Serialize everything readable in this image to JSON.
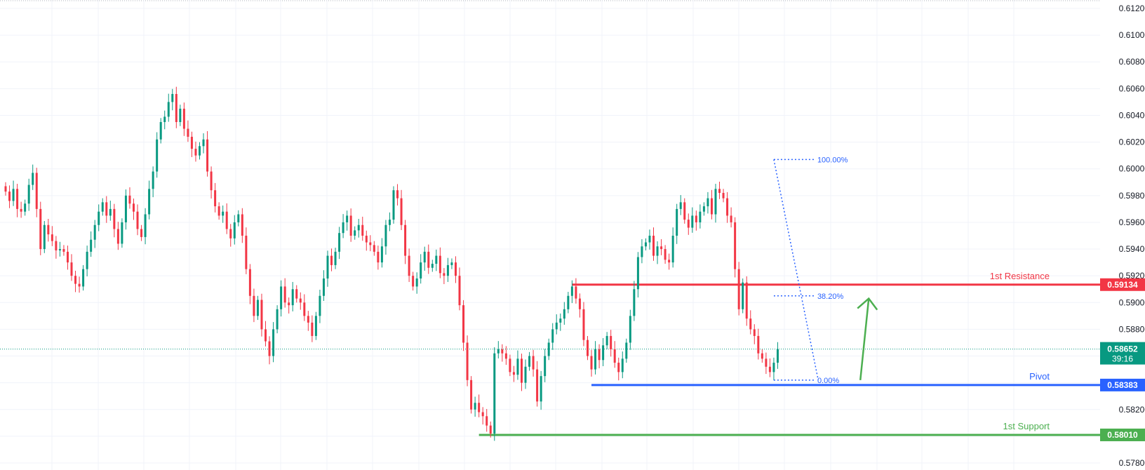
{
  "chart_data": {
    "type": "candlestick",
    "instrument_note": "",
    "ylim": [
      0.577,
      0.6122
    ],
    "y_ticks": [
      "0.61200",
      "0.61000",
      "0.60800",
      "0.60600",
      "0.60400",
      "0.60200",
      "0.60000",
      "0.59800",
      "0.59600",
      "0.59400",
      "0.59200",
      "0.59000",
      "0.58800",
      "0.58600",
      "0.58400",
      "0.58200",
      "0.58000",
      "0.57800"
    ],
    "y_tick_values": [
      0.612,
      0.61,
      0.608,
      0.606,
      0.604,
      0.602,
      0.6,
      0.598,
      0.596,
      0.594,
      0.592,
      0.59,
      0.588,
      0.586,
      0.584,
      0.582,
      0.58,
      0.578
    ],
    "grid": true,
    "colors": {
      "up": "#089981",
      "down": "#f23645",
      "resistance": "#f23645",
      "pivot": "#2962ff",
      "support": "#4caf50",
      "fib": "#2962ff",
      "grid": "#f0f3fa",
      "current": "#089981"
    },
    "current_price": {
      "value": 0.58652,
      "label": "0.58652",
      "countdown": "39:16"
    },
    "levels": [
      {
        "name": "1st Resistance",
        "value": 0.59134,
        "label": "0.59134",
        "color": "#f23645",
        "start_index": 146
      },
      {
        "name": "Pivot",
        "value": 0.58383,
        "label": "0.58383",
        "color": "#2962ff",
        "start_index": 151
      },
      {
        "name": "1st Support",
        "value": 0.5801,
        "label": "0.58010",
        "color": "#4caf50",
        "start_index": 122
      }
    ],
    "fibonacci": [
      {
        "label": "100.00%",
        "value": 0.6007
      },
      {
        "label": "38.20%",
        "value": 0.5905
      },
      {
        "label": "0.00%",
        "value": 0.5842
      }
    ],
    "fib_anchor_start_index": 198,
    "fib_anchor_end_index": 208,
    "projection_arrow": {
      "from_value": 0.5842,
      "to_value": 0.5903
    },
    "candles_close": [
      0.5983,
      0.5976,
      0.5985,
      0.597,
      0.5968,
      0.5974,
      0.5988,
      0.5997,
      0.597,
      0.594,
      0.5958,
      0.5951,
      0.5946,
      0.5939,
      0.594,
      0.5938,
      0.593,
      0.592,
      0.5914,
      0.5912,
      0.5925,
      0.5938,
      0.5947,
      0.5958,
      0.5968,
      0.5975,
      0.5965,
      0.597,
      0.5955,
      0.5944,
      0.596,
      0.598,
      0.5974,
      0.5968,
      0.5955,
      0.5949,
      0.5966,
      0.5985,
      0.5998,
      0.6022,
      0.6035,
      0.6039,
      0.605,
      0.6056,
      0.6035,
      0.6045,
      0.603,
      0.6024,
      0.6015,
      0.601,
      0.6017,
      0.6022,
      0.5998,
      0.5984,
      0.5972,
      0.5965,
      0.5968,
      0.5955,
      0.5948,
      0.596,
      0.5966,
      0.595,
      0.5925,
      0.5905,
      0.589,
      0.5902,
      0.588,
      0.5871,
      0.586,
      0.588,
      0.5895,
      0.5912,
      0.59,
      0.5898,
      0.591,
      0.5903,
      0.59,
      0.589,
      0.5885,
      0.5875,
      0.589,
      0.5905,
      0.5918,
      0.5935,
      0.5928,
      0.5938,
      0.5952,
      0.596,
      0.5965,
      0.595,
      0.5954,
      0.5958,
      0.595,
      0.5945,
      0.5943,
      0.5938,
      0.593,
      0.5942,
      0.5958,
      0.5962,
      0.5984,
      0.5978,
      0.5958,
      0.5935,
      0.592,
      0.5912,
      0.5918,
      0.593,
      0.5938,
      0.5926,
      0.5929,
      0.5935,
      0.5922,
      0.592,
      0.5928,
      0.593,
      0.592,
      0.5898,
      0.587,
      0.5842,
      0.582,
      0.5825,
      0.5818,
      0.5815,
      0.5808,
      0.5802,
      0.5862,
      0.5865,
      0.5862,
      0.5858,
      0.5848,
      0.5846,
      0.5858,
      0.584,
      0.5852,
      0.586,
      0.585,
      0.5826,
      0.5845,
      0.586,
      0.587,
      0.588,
      0.5885,
      0.5888,
      0.5895,
      0.5905,
      0.5912,
      0.5903,
      0.5895,
      0.5872,
      0.586,
      0.585,
      0.5865,
      0.5857,
      0.5868,
      0.5875,
      0.5865,
      0.5855,
      0.5848,
      0.5858,
      0.587,
      0.589,
      0.591,
      0.5934,
      0.5942,
      0.5945,
      0.595,
      0.5935,
      0.5942,
      0.594,
      0.5932,
      0.593,
      0.595,
      0.597,
      0.5975,
      0.5962,
      0.5956,
      0.5965,
      0.596,
      0.5968,
      0.5972,
      0.5978,
      0.5966,
      0.5985,
      0.5982,
      0.5978,
      0.5965,
      0.596,
      0.5925,
      0.5895,
      0.5915,
      0.5888,
      0.588,
      0.5875,
      0.5862,
      0.5858,
      0.5852,
      0.5848,
      0.5855,
      0.5865
    ]
  }
}
